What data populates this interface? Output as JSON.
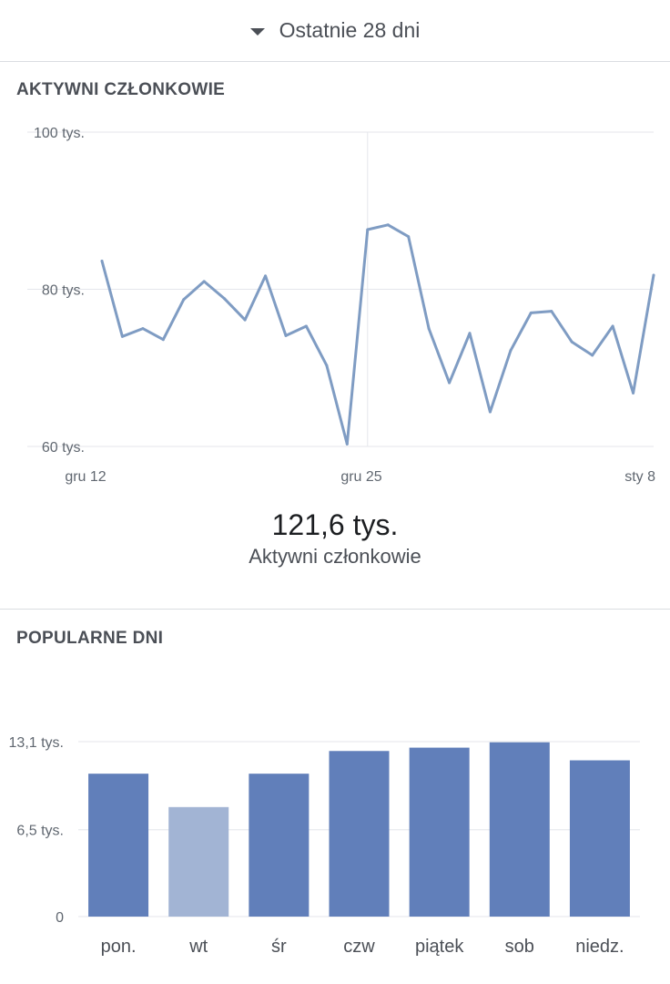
{
  "range_selector": {
    "label": "Ostatnie 28 dni",
    "icon": "caret-down-icon"
  },
  "active_members": {
    "title": "AKTYWNI CZŁONKOWIE",
    "summary_value": "121,6 tys.",
    "summary_label": "Aktywni członkowie"
  },
  "popular_days": {
    "title": "POPULARNE DNI"
  },
  "chart_data": [
    {
      "type": "line",
      "title": "AKTYWNI CZŁONKOWIE",
      "xlabel": "",
      "ylabel": "",
      "ylim": [
        60000,
        100000
      ],
      "y_ticks": [
        100000,
        80000,
        60000
      ],
      "y_tick_labels": [
        "100 tys.",
        "80 tys.",
        "60 tys."
      ],
      "x_tick_labels": [
        "gru 12",
        "gru 25",
        "sty 8"
      ],
      "x_tick_indices": [
        0,
        13,
        27
      ],
      "highlight_index": 13,
      "grid": true,
      "color": "#7f9cc3",
      "x": [
        "gru 12",
        "gru 13",
        "gru 14",
        "gru 15",
        "gru 16",
        "gru 17",
        "gru 18",
        "gru 19",
        "gru 20",
        "gru 21",
        "gru 22",
        "gru 23",
        "gru 24",
        "gru 25",
        "gru 26",
        "gru 27",
        "gru 28",
        "gru 29",
        "gru 30",
        "gru 31",
        "sty 1",
        "sty 2",
        "sty 3",
        "sty 4",
        "sty 5",
        "sty 6",
        "sty 7",
        "sty 8"
      ],
      "series": [
        {
          "values": [
            83600,
            74000,
            75000,
            73600,
            78700,
            81000,
            78800,
            76100,
            81700,
            74100,
            75300,
            70300,
            60300,
            87600,
            88200,
            86700,
            75000,
            68100,
            74400,
            64400,
            72200,
            77000,
            77200,
            73300,
            71600,
            75300,
            66800,
            81800
          ]
        }
      ]
    },
    {
      "type": "bar",
      "title": "POPULARNE DNI",
      "xlabel": "",
      "ylabel": "",
      "ylim": [
        0,
        13100
      ],
      "y_ticks": [
        13100,
        6500,
        0
      ],
      "y_tick_labels": [
        "13,1 tys.",
        "6,5 tys.",
        "0"
      ],
      "categories": [
        "pon.",
        "wt",
        "śr",
        "czw",
        "piątek",
        "sob",
        "niedz."
      ],
      "values": [
        10700,
        8200,
        10700,
        12400,
        12650,
        13050,
        11700
      ],
      "highlight_index": 1,
      "grid": true,
      "bar_color": "#617fba",
      "highlight_color": "#a2b4d4"
    }
  ]
}
